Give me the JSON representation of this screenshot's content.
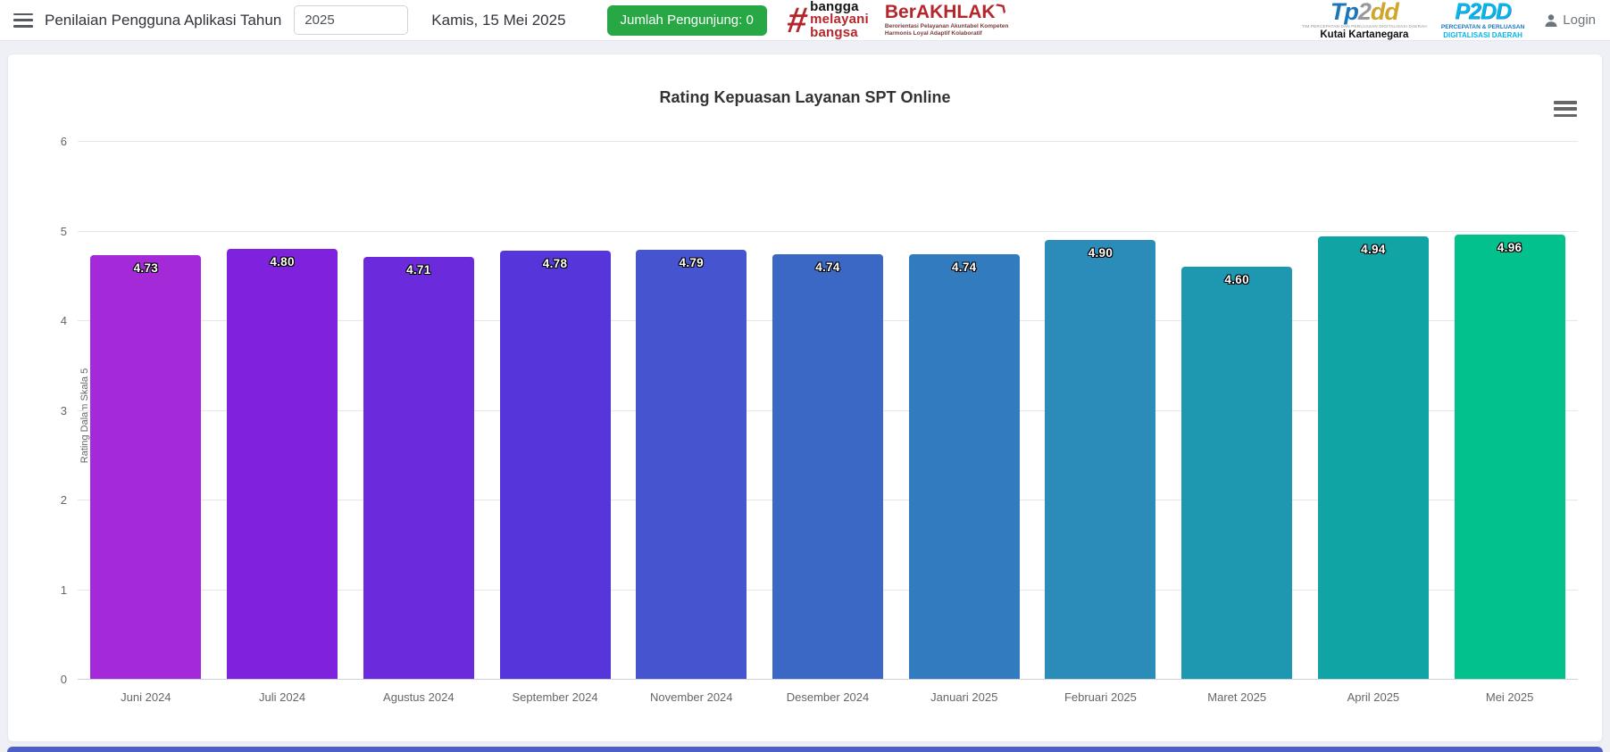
{
  "header": {
    "title": "Penilaian Pengguna Aplikasi Tahun",
    "year_input_value": "2025",
    "date": "Kamis, 15 Mei 2025",
    "visitors_button_label": "Jumlah Pengunjung: 0",
    "visitors_button_color": "#28a745",
    "login_label": "Login",
    "logos": {
      "bangga": {
        "hash": "#",
        "line1": "bangga",
        "line2": "melayani",
        "line3": "bangsa"
      },
      "berakhlak": {
        "title": "BerAKHLAK",
        "arrow": "❯",
        "subtitle_line1": "Berorientasi Pelayanan Akuntabel Kompeten",
        "subtitle_line2": "Harmonis Loyal Adaptif Kolaboratif"
      },
      "tp2dd": {
        "part1": "Tp",
        "part2": "2",
        "part3": "dd",
        "tagline": "TIM PERCEPATAN DAN PERLUASAN DIGITALISASI DAERAH",
        "region": "Kutai Kartanegara"
      },
      "p2dd": {
        "text": "P2DD",
        "line1": "PERCEPATAN & PERLUASAN",
        "line2": "DIGITALISASI DAERAH"
      }
    }
  },
  "chart_data": {
    "type": "bar",
    "title": "Rating Kepuasan Layanan SPT Online",
    "xlabel": "",
    "ylabel": "Rating Dalam Skala 5",
    "ylim": [
      0,
      6
    ],
    "yticks": [
      0,
      1,
      2,
      3,
      4,
      5,
      6
    ],
    "grid": true,
    "legend": "none",
    "categories": [
      "Juni 2024",
      "Juli 2024",
      "Agustus 2024",
      "September 2024",
      "November 2024",
      "Desember 2024",
      "Januari 2025",
      "Februari 2025",
      "Maret 2025",
      "April 2025",
      "Mei 2025"
    ],
    "values": [
      4.73,
      4.8,
      4.71,
      4.78,
      4.79,
      4.74,
      4.74,
      4.9,
      4.6,
      4.94,
      4.96
    ],
    "value_labels": [
      "4.73",
      "4.80",
      "4.71",
      "4.78",
      "4.79",
      "4.74",
      "4.74",
      "4.90",
      "4.60",
      "4.94",
      "4.96"
    ],
    "bar_colors": [
      "#a429d8",
      "#7e22dd",
      "#6b2bdc",
      "#5636da",
      "#4754cf",
      "#3b68c5",
      "#317bbe",
      "#2b8cba",
      "#1e98b1",
      "#10a4a5",
      "#03c18c"
    ]
  }
}
